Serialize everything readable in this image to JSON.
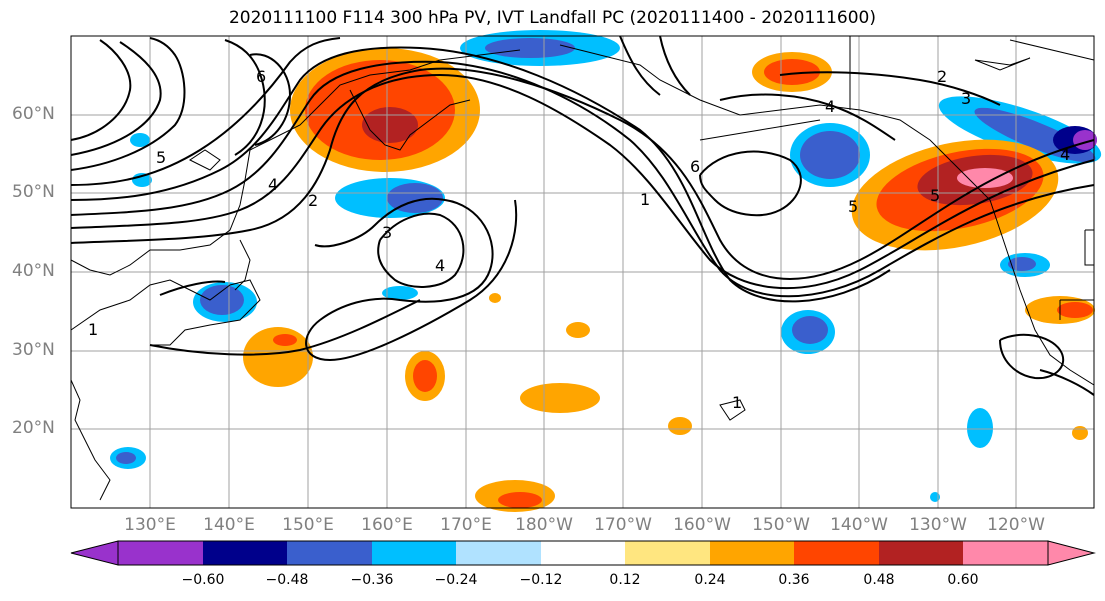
{
  "title": "2020111100 F114 300 hPa PV, IVT Landfall PC (2020111400 - 2020111600)",
  "lat_labels": [
    "60°N",
    "50°N",
    "40°N",
    "30°N",
    "20°N"
  ],
  "lon_labels": [
    "130°E",
    "140°E",
    "150°E",
    "160°E",
    "170°E",
    "180°W",
    "170°W",
    "160°W",
    "150°W",
    "140°W",
    "130°W",
    "120°W"
  ],
  "colorbar": {
    "ticks": [
      "−0.60",
      "−0.48",
      "−0.36",
      "−0.24",
      "−0.12",
      "0.12",
      "0.24",
      "0.36",
      "0.48",
      "0.60"
    ],
    "colors": [
      "#9932cc",
      "#00008b",
      "#3a5fcd",
      "#00bfff",
      "#b0e2ff",
      "#ffffff",
      "#ffe680",
      "#ffa500",
      "#ff4500",
      "#b22222",
      "#ff88aa"
    ]
  },
  "contour_labels": [
    "6",
    "5",
    "4",
    "2",
    "3",
    "4",
    "1",
    "6",
    "1",
    "2",
    "3",
    "4",
    "5",
    "5",
    "4",
    "1"
  ]
}
